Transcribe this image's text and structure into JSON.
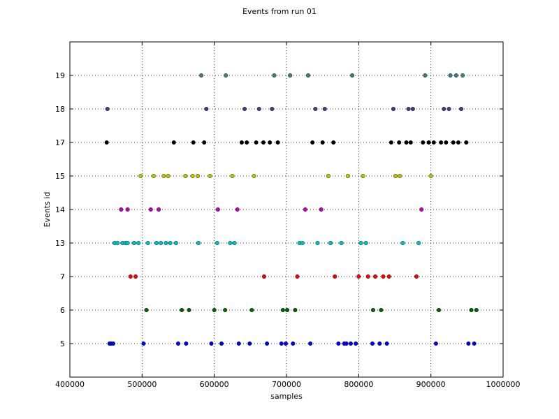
{
  "chart_data": {
    "type": "scatter",
    "title": "Events from run 01",
    "xlabel": "samples",
    "ylabel": "Events id",
    "xlim": [
      400000,
      1000000
    ],
    "x_ticks": [
      "400000",
      "500000",
      "600000",
      "700000",
      "800000",
      "900000",
      "1000000"
    ],
    "x_tick_values": [
      400000,
      500000,
      600000,
      700000,
      800000,
      900000,
      1000000
    ],
    "categories": [
      "5",
      "6",
      "7",
      "13",
      "14",
      "15",
      "17",
      "18",
      "19"
    ],
    "grid": true,
    "series": [
      {
        "category": "5",
        "color": "#0000ff",
        "x": [
          455000,
          457000,
          460000,
          502000,
          550000,
          561000,
          596000,
          610000,
          634000,
          649000,
          673000,
          693000,
          699000,
          709000,
          733000,
          772000,
          780000,
          783000,
          789000,
          796000,
          819000,
          829000,
          839000,
          907000,
          952000,
          960000
        ]
      },
      {
        "category": "6",
        "color": "#006400",
        "x": [
          506000,
          555000,
          565000,
          600000,
          615000,
          652000,
          695000,
          701000,
          712000,
          820000,
          831000,
          911000,
          956000,
          963000
        ]
      },
      {
        "category": "7",
        "color": "#ff0000",
        "x": [
          484000,
          491000,
          669000,
          715000,
          767000,
          800000,
          813000,
          823000,
          834000,
          842000,
          880000
        ]
      },
      {
        "category": "13",
        "color": "#00bfbf",
        "x": [
          462000,
          466000,
          473000,
          477000,
          480000,
          489000,
          495000,
          508000,
          520000,
          526000,
          533000,
          539000,
          547000,
          578000,
          604000,
          622000,
          628000,
          718000,
          722000,
          743000,
          761000,
          776000,
          803000,
          810000,
          861000,
          883000
        ]
      },
      {
        "category": "14",
        "color": "#bf00bf",
        "x": [
          471000,
          480000,
          512000,
          523000,
          605000,
          632000,
          726000,
          748000,
          887000
        ]
      },
      {
        "category": "15",
        "color": "#bfbf00",
        "x": [
          498000,
          516000,
          530000,
          536000,
          560000,
          570000,
          577000,
          594000,
          625000,
          655000,
          758000,
          785000,
          806000,
          851000,
          857000,
          900000
        ]
      },
      {
        "category": "17",
        "color": "#000000",
        "x": [
          451000,
          544000,
          571000,
          586000,
          638000,
          645000,
          658000,
          668000,
          677000,
          688000,
          736000,
          750000,
          765000,
          845000,
          856000,
          866000,
          872000,
          889000,
          897000,
          904000,
          914000,
          921000,
          931000,
          938000,
          949000
        ]
      },
      {
        "category": "18",
        "color": "#3f3f7f",
        "x": [
          452000,
          589000,
          642000,
          662000,
          680000,
          740000,
          753000,
          848000,
          869000,
          875000,
          918000,
          925000,
          942000
        ]
      },
      {
        "category": "19",
        "color": "#3f7f7f",
        "x": [
          582000,
          616000,
          683000,
          705000,
          730000,
          791000,
          892000,
          927000,
          935000,
          944000
        ]
      }
    ]
  }
}
